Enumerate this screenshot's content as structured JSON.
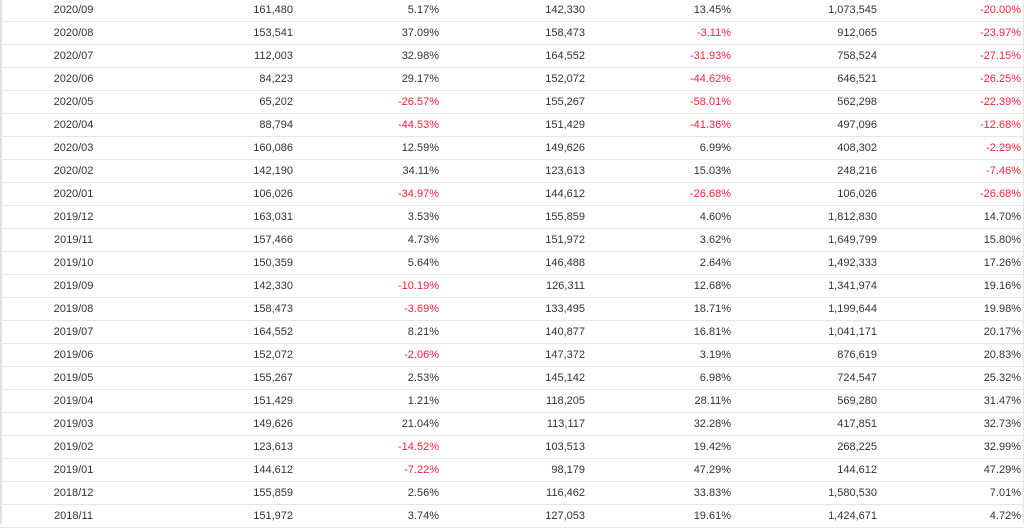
{
  "colors": {
    "negative": "#ff1f3a",
    "text": "#333333",
    "rule": "#e6e6e6"
  },
  "table": {
    "rows": [
      [
        "2020/09",
        "161,480",
        "5.17%",
        "142,330",
        "13.45%",
        "1,073,545",
        "-20.00%"
      ],
      [
        "2020/08",
        "153,541",
        "37.09%",
        "158,473",
        "-3.11%",
        "912,065",
        "-23.97%"
      ],
      [
        "2020/07",
        "112,003",
        "32.98%",
        "164,552",
        "-31.93%",
        "758,524",
        "-27.15%"
      ],
      [
        "2020/06",
        "84,223",
        "29.17%",
        "152,072",
        "-44.62%",
        "646,521",
        "-26.25%"
      ],
      [
        "2020/05",
        "65,202",
        "-26.57%",
        "155,267",
        "-58.01%",
        "562,298",
        "-22.39%"
      ],
      [
        "2020/04",
        "88,794",
        "-44.53%",
        "151,429",
        "-41.36%",
        "497,096",
        "-12.68%"
      ],
      [
        "2020/03",
        "160,086",
        "12.59%",
        "149,626",
        "6.99%",
        "408,302",
        "-2.29%"
      ],
      [
        "2020/02",
        "142,190",
        "34.11%",
        "123,613",
        "15.03%",
        "248,216",
        "-7.46%"
      ],
      [
        "2020/01",
        "106,026",
        "-34.97%",
        "144,612",
        "-26.68%",
        "106,026",
        "-26.68%"
      ],
      [
        "2019/12",
        "163,031",
        "3.53%",
        "155,859",
        "4.60%",
        "1,812,830",
        "14.70%"
      ],
      [
        "2019/11",
        "157,466",
        "4.73%",
        "151,972",
        "3.62%",
        "1,649,799",
        "15.80%"
      ],
      [
        "2019/10",
        "150,359",
        "5.64%",
        "146,488",
        "2.64%",
        "1,492,333",
        "17.26%"
      ],
      [
        "2019/09",
        "142,330",
        "-10.19%",
        "126,311",
        "12.68%",
        "1,341,974",
        "19.16%"
      ],
      [
        "2019/08",
        "158,473",
        "-3.69%",
        "133,495",
        "18.71%",
        "1,199,644",
        "19.98%"
      ],
      [
        "2019/07",
        "164,552",
        "8.21%",
        "140,877",
        "16.81%",
        "1,041,171",
        "20.17%"
      ],
      [
        "2019/06",
        "152,072",
        "-2.06%",
        "147,372",
        "3.19%",
        "876,619",
        "20.83%"
      ],
      [
        "2019/05",
        "155,267",
        "2.53%",
        "145,142",
        "6.98%",
        "724,547",
        "25.32%"
      ],
      [
        "2019/04",
        "151,429",
        "1.21%",
        "118,205",
        "28.11%",
        "569,280",
        "31.47%"
      ],
      [
        "2019/03",
        "149,626",
        "21.04%",
        "113,117",
        "32.28%",
        "417,851",
        "32.73%"
      ],
      [
        "2019/02",
        "123,613",
        "-14.52%",
        "103,513",
        "19.42%",
        "268,225",
        "32.99%"
      ],
      [
        "2019/01",
        "144,612",
        "-7.22%",
        "98,179",
        "47.29%",
        "144,612",
        "47.29%"
      ],
      [
        "2018/12",
        "155,859",
        "2.56%",
        "116,462",
        "33.83%",
        "1,580,530",
        "7.01%"
      ],
      [
        "2018/11",
        "151,972",
        "3.74%",
        "127,053",
        "19.61%",
        "1,424,671",
        "4.72%"
      ]
    ]
  }
}
